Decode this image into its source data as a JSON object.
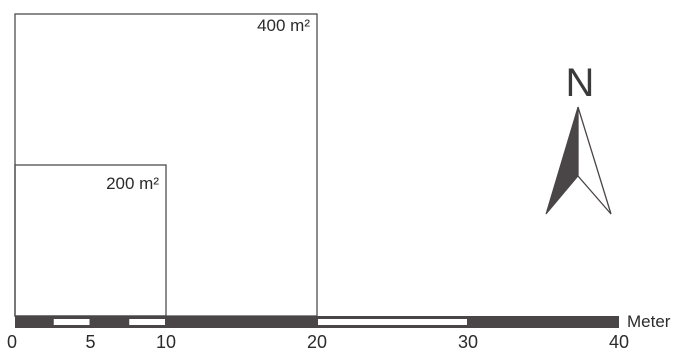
{
  "plots": [
    {
      "area_label": "400 m²",
      "side_m": 20
    },
    {
      "area_label": "200 m²",
      "side_m": 10
    }
  ],
  "north_arrow": {
    "letter": "N",
    "icon": "north-arrow-icon"
  },
  "scale_bar": {
    "unit_label": "Meter",
    "ticks": [
      {
        "value": 0,
        "label": "0"
      },
      {
        "value": 5,
        "label": "5"
      },
      {
        "value": 10,
        "label": "10"
      },
      {
        "value": 20,
        "label": "20"
      },
      {
        "value": 30,
        "label": "30"
      },
      {
        "value": 40,
        "label": "40"
      }
    ],
    "segments": [
      {
        "from": 0,
        "to": 2.5,
        "fill": "dark"
      },
      {
        "from": 2.5,
        "to": 5,
        "fill": "light"
      },
      {
        "from": 5,
        "to": 7.5,
        "fill": "dark"
      },
      {
        "from": 7.5,
        "to": 10,
        "fill": "light"
      },
      {
        "from": 10,
        "to": 20,
        "fill": "dark"
      },
      {
        "from": 20,
        "to": 30,
        "fill": "light"
      },
      {
        "from": 30,
        "to": 40,
        "fill": "dark"
      }
    ]
  },
  "colors": {
    "dark_fill": "#4a4546",
    "light_fill": "#ffffff",
    "line": "#4d4d4d",
    "arrow_dark": "#4a4546"
  }
}
